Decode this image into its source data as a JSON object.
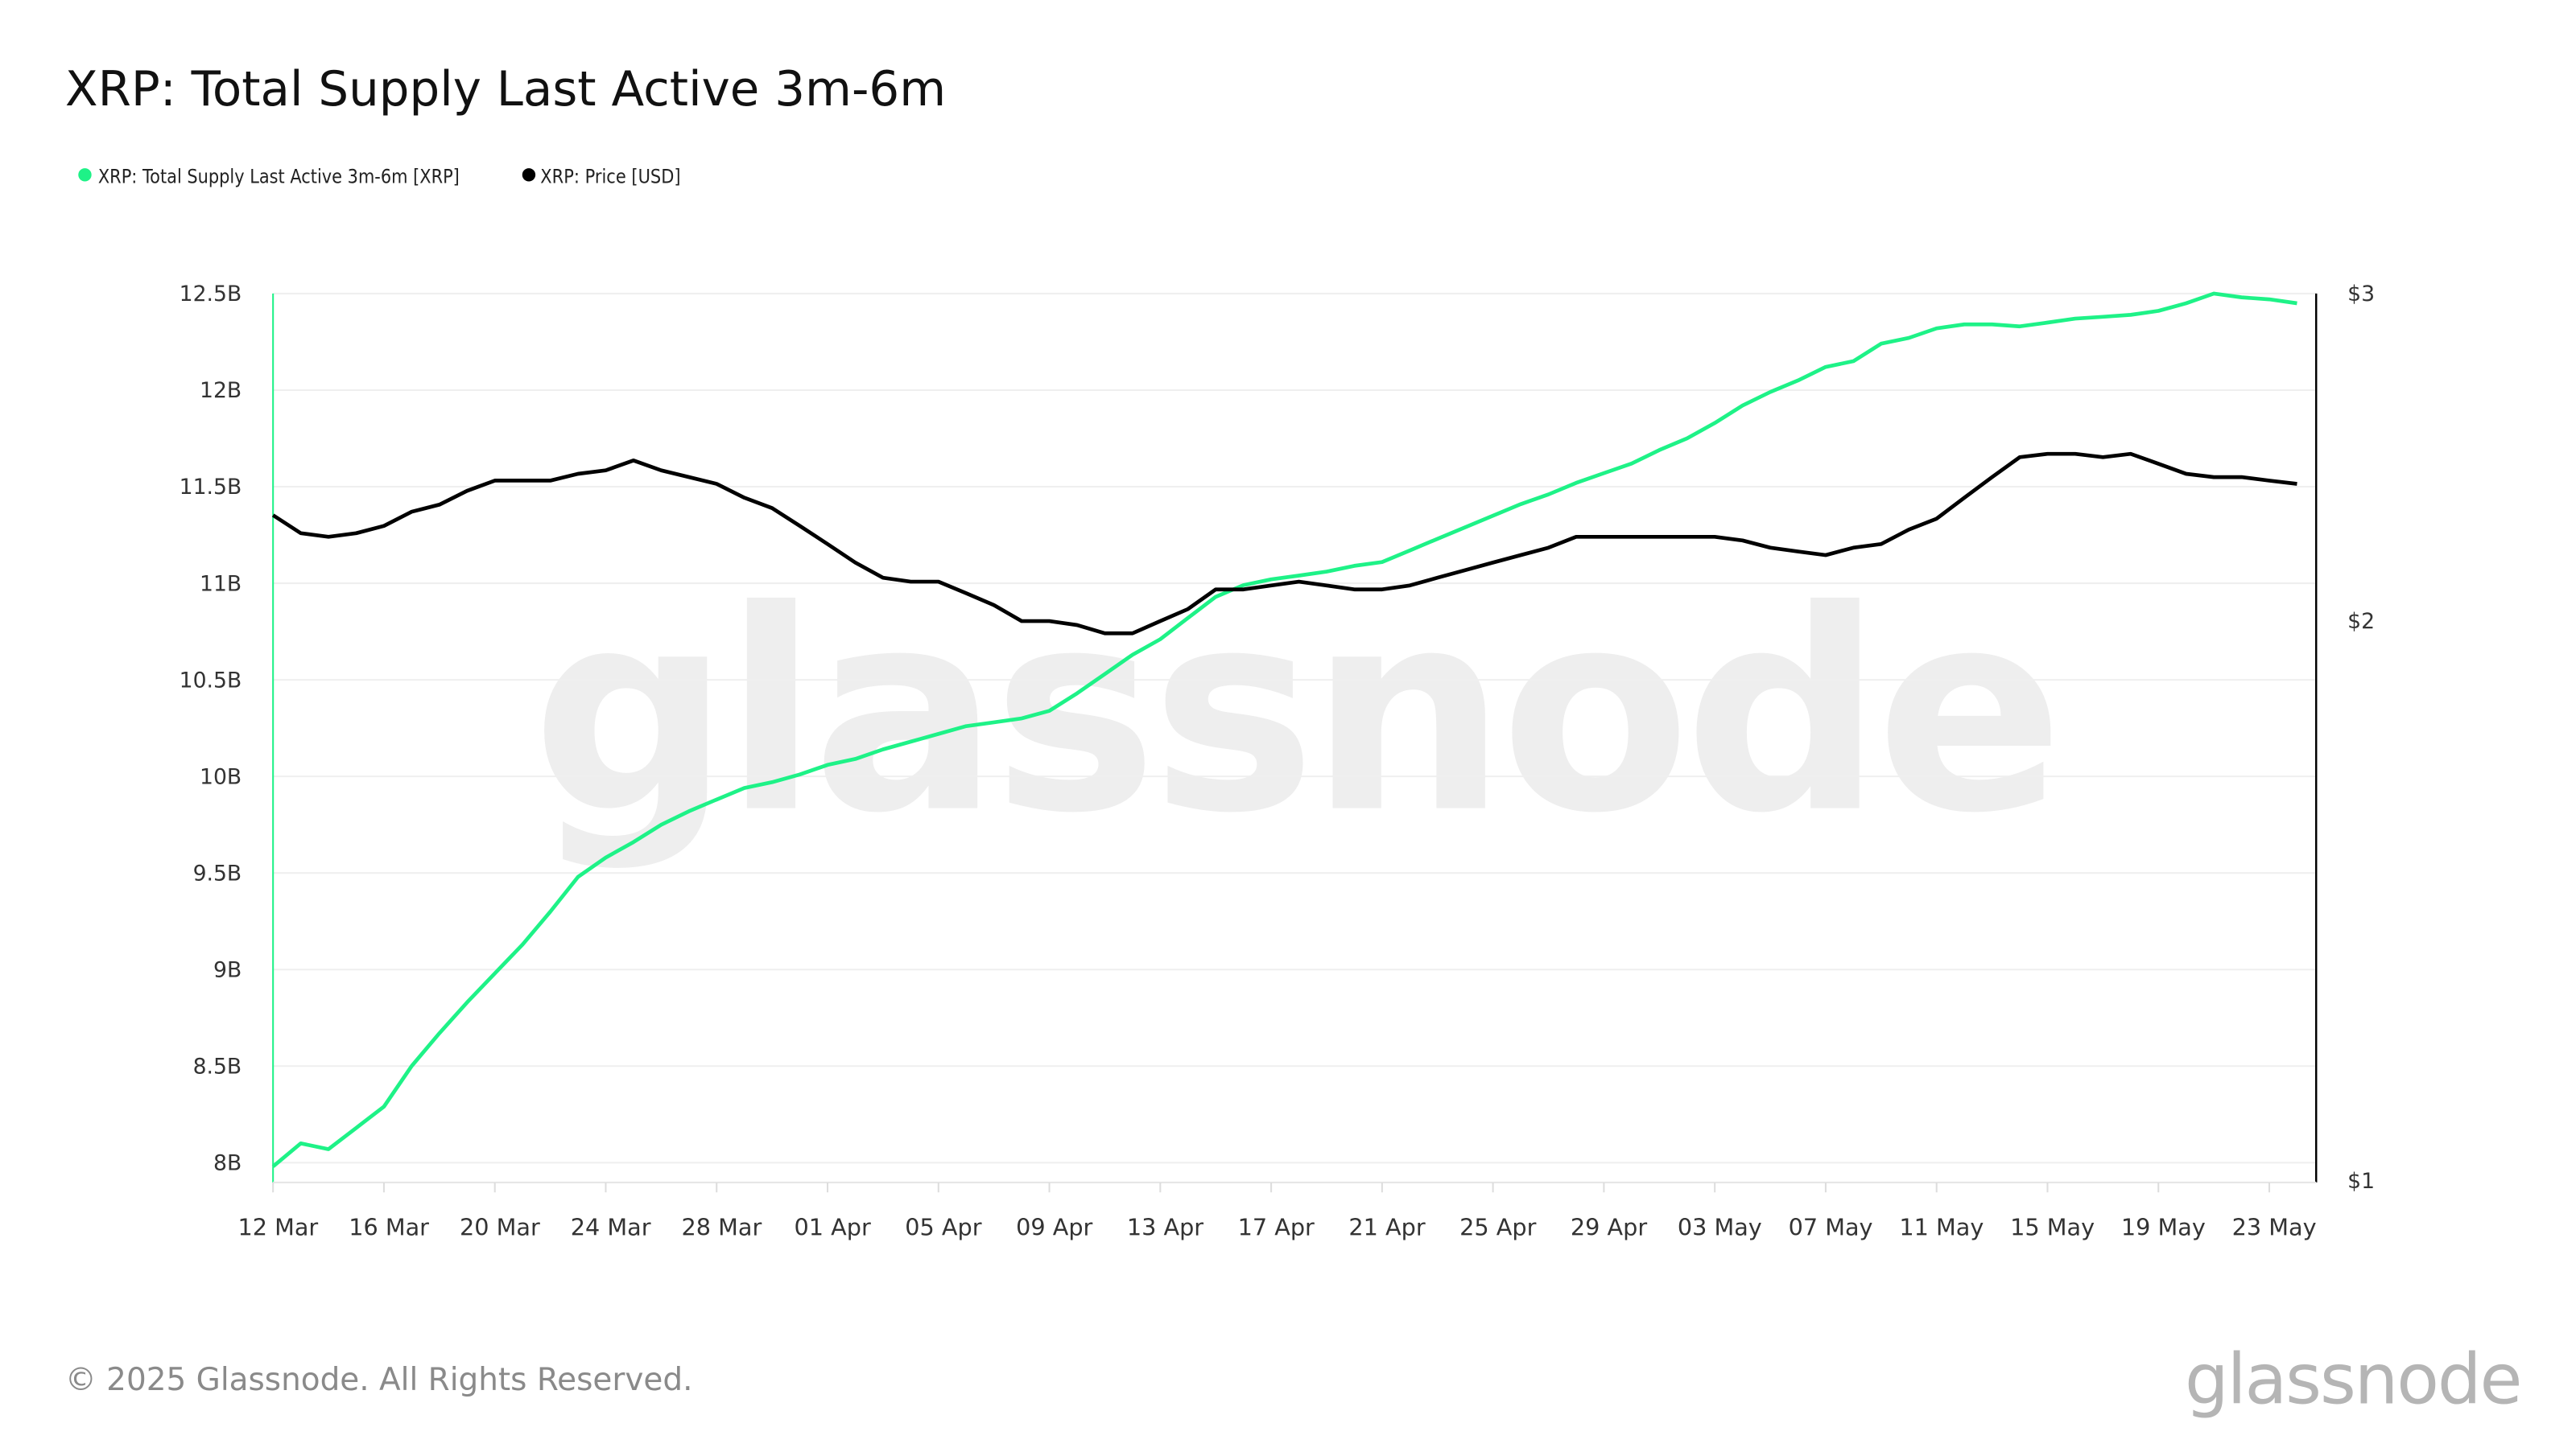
{
  "chart_data": {
    "type": "line",
    "title": "XRP: Total Supply Last Active 3m-6m",
    "legend": [
      {
        "label": "XRP: Total Supply Last Active 3m-6m [XRP]",
        "color": "#1ef287"
      },
      {
        "label": "XRP: Price [USD]",
        "color": "#000000"
      }
    ],
    "legend_placement": "top-left",
    "grid": true,
    "x": [
      "12 Mar",
      "13 Mar",
      "14 Mar",
      "15 Mar",
      "16 Mar",
      "17 Mar",
      "18 Mar",
      "19 Mar",
      "20 Mar",
      "21 Mar",
      "22 Mar",
      "23 Mar",
      "24 Mar",
      "25 Mar",
      "26 Mar",
      "27 Mar",
      "28 Mar",
      "29 Mar",
      "30 Mar",
      "31 Mar",
      "01 Apr",
      "02 Apr",
      "03 Apr",
      "04 Apr",
      "05 Apr",
      "06 Apr",
      "07 Apr",
      "08 Apr",
      "09 Apr",
      "10 Apr",
      "11 Apr",
      "12 Apr",
      "13 Apr",
      "14 Apr",
      "15 Apr",
      "16 Apr",
      "17 Apr",
      "18 Apr",
      "19 Apr",
      "20 Apr",
      "21 Apr",
      "22 Apr",
      "23 Apr",
      "24 Apr",
      "25 Apr",
      "26 Apr",
      "27 Apr",
      "28 Apr",
      "29 Apr",
      "30 Apr",
      "01 May",
      "02 May",
      "03 May",
      "04 May",
      "05 May",
      "06 May",
      "07 May",
      "08 May",
      "09 May",
      "10 May",
      "11 May",
      "12 May",
      "13 May",
      "14 May",
      "15 May",
      "16 May",
      "17 May",
      "18 May",
      "19 May",
      "20 May",
      "21 May",
      "22 May",
      "23 May",
      "24 May"
    ],
    "x_tick_labels": [
      "12 Mar",
      "16 Mar",
      "20 Mar",
      "24 Mar",
      "28 Mar",
      "01 Apr",
      "05 Apr",
      "09 Apr",
      "13 Apr",
      "17 Apr",
      "21 Apr",
      "25 Apr",
      "29 Apr",
      "03 May",
      "07 May",
      "11 May",
      "15 May",
      "19 May",
      "23 May"
    ],
    "y_left": {
      "label": "",
      "unit": "B XRP",
      "range": [
        7.98,
        12.5
      ],
      "ticks": [
        8,
        8.5,
        9,
        9.5,
        10,
        10.5,
        11,
        11.5,
        12,
        12.5
      ],
      "tick_labels": [
        "8B",
        "8.5B",
        "9B",
        "9.5B",
        "10B",
        "10.5B",
        "11B",
        "11.5B",
        "12B",
        "12.5B"
      ]
    },
    "y_right": {
      "label": "",
      "scale": "log",
      "range": [
        1,
        3
      ],
      "ticks": [
        1,
        2,
        3
      ],
      "tick_labels": [
        "$1",
        "$2",
        "$3"
      ]
    },
    "series": [
      {
        "name": "XRP: Total Supply Last Active 3m-6m [XRP]",
        "axis": "left",
        "color": "#1ef287",
        "values": [
          7.98,
          8.1,
          8.07,
          8.18,
          8.29,
          8.5,
          8.67,
          8.83,
          8.98,
          9.13,
          9.3,
          9.48,
          9.58,
          9.66,
          9.75,
          9.82,
          9.88,
          9.94,
          9.97,
          10.01,
          10.06,
          10.09,
          10.14,
          10.18,
          10.22,
          10.26,
          10.28,
          10.3,
          10.34,
          10.43,
          10.53,
          10.63,
          10.71,
          10.82,
          10.93,
          10.99,
          11.02,
          11.04,
          11.06,
          11.09,
          11.11,
          11.17,
          11.23,
          11.29,
          11.35,
          11.41,
          11.46,
          11.52,
          11.57,
          11.62,
          11.69,
          11.75,
          11.83,
          11.92,
          11.99,
          12.05,
          12.12,
          12.15,
          12.24,
          12.27,
          12.32,
          12.34,
          12.34,
          12.33,
          12.35,
          12.37,
          12.38,
          12.39,
          12.41,
          12.45,
          12.5,
          12.48,
          12.47,
          12.45
        ]
      },
      {
        "name": "XRP: Price [USD]",
        "axis": "right",
        "color": "#000000",
        "values": [
          2.28,
          2.23,
          2.22,
          2.23,
          2.25,
          2.29,
          2.31,
          2.35,
          2.38,
          2.38,
          2.38,
          2.4,
          2.41,
          2.44,
          2.41,
          2.39,
          2.37,
          2.33,
          2.3,
          2.25,
          2.2,
          2.15,
          2.11,
          2.1,
          2.1,
          2.07,
          2.04,
          2.0,
          2.0,
          1.99,
          1.97,
          1.97,
          2.0,
          2.03,
          2.08,
          2.08,
          2.09,
          2.1,
          2.09,
          2.08,
          2.08,
          2.09,
          2.11,
          2.13,
          2.15,
          2.17,
          2.19,
          2.22,
          2.22,
          2.22,
          2.22,
          2.22,
          2.22,
          2.21,
          2.19,
          2.18,
          2.17,
          2.19,
          2.2,
          2.24,
          2.27,
          2.33,
          2.39,
          2.45,
          2.46,
          2.46,
          2.45,
          2.46,
          2.43,
          2.4,
          2.39,
          2.39,
          2.38,
          2.37
        ]
      }
    ]
  },
  "watermark": "glassnode",
  "footer": {
    "copyright": "© 2025 Glassnode. All Rights Reserved.",
    "logo": "glassnode"
  }
}
